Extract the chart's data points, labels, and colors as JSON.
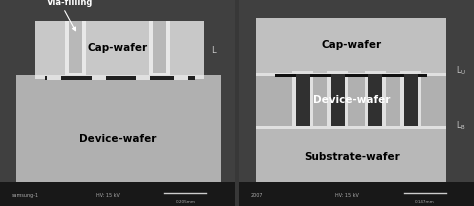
{
  "fig_width": 4.74,
  "fig_height": 2.06,
  "dpi": 100,
  "bg_color": "#383838",
  "left_panel": {
    "sem_bg": "#404040",
    "device_wafer_color": "#b0b0b0",
    "cap_wafer_color": "#c8c8c8",
    "via_bright": "#e8e8e8",
    "via_dark_center": "#b8b8b8",
    "bond_line_color": "#e0e0e0",
    "bond_dark": "#202020",
    "footer_bg": "#181818",
    "cap_wafer_label": "Cap-wafer",
    "device_wafer_label": "Device-wafer",
    "via_label": "Via-filling",
    "L_label": "L",
    "scale_bar_text": "0.205mm",
    "footer_text1": "samsung-1",
    "footer_text2": "HV: 15 kV",
    "label_color": "#000000",
    "via_label_color": "#ffffff",
    "label_fontsize": 7.5,
    "arrow_color": "#ffffff"
  },
  "right_panel": {
    "sem_bg": "#404040",
    "cap_wafer_color": "#c0c0c0",
    "device_wafer_color": "#b0b0b0",
    "substrate_wafer_color": "#b8b8b8",
    "via_bright": "#e0e0e0",
    "via_dark_center": "#303030",
    "bond_line_color": "#e0e0e0",
    "bond_dark": "#101010",
    "footer_bg": "#181818",
    "cap_wafer_label": "Cap-wafer",
    "device_wafer_label": "Device-wafer",
    "substrate_wafer_label": "Substrate-wafer",
    "LU_label": "L_U",
    "LB_label": "L_B",
    "scale_bar_text": "0.147mm",
    "footer_text1": "2007",
    "footer_text2": "HV: 15 kV",
    "label_color": "#000000",
    "label_color_white": "#ffffff",
    "label_fontsize": 7.5
  }
}
